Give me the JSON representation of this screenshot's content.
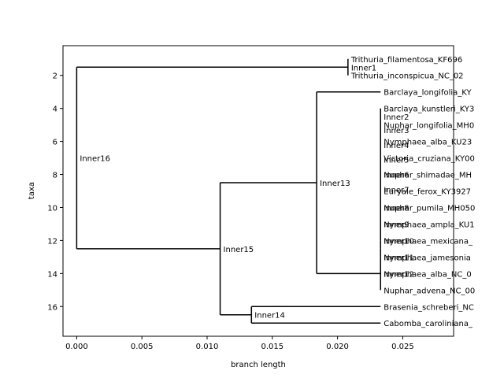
{
  "chart_data": {
    "type": "dendrogram",
    "title": "",
    "xlabel": "branch length",
    "ylabel": "taxa",
    "xlim": [
      -0.00105,
      0.0289
    ],
    "ylim": [
      17.8,
      0.2
    ],
    "xticks": [
      0.0,
      0.005,
      0.01,
      0.015,
      0.02,
      0.025
    ],
    "xtick_labels": [
      "0.000",
      "0.005",
      "0.010",
      "0.015",
      "0.020",
      "0.025"
    ],
    "yticks": [
      2,
      4,
      6,
      8,
      10,
      12,
      14,
      16
    ],
    "ytick_labels": [
      "2",
      "4",
      "6",
      "8",
      "10",
      "12",
      "14",
      "16"
    ],
    "grid": false,
    "nodes": [
      {
        "name": "Inner16",
        "x": 0.0,
        "y": 7.0,
        "parent": null
      },
      {
        "name": "Inner1",
        "x": 0.0208,
        "y": 1.5,
        "parent": "Inner16"
      },
      {
        "name": "Inner15",
        "x": 0.011,
        "y": 12.5,
        "parent": "Inner16"
      },
      {
        "name": "Inner13",
        "x": 0.0184,
        "y": 8.5,
        "parent": "Inner15"
      },
      {
        "name": "Inner14",
        "x": 0.0134,
        "y": 16.5,
        "parent": "Inner15"
      },
      {
        "name": "Inner12",
        "x": 0.0233,
        "y": 14.0,
        "parent": "Inner13"
      },
      {
        "name": "Inner11",
        "x": 0.0233,
        "y": 13.5,
        "parent": "Inner12"
      },
      {
        "name": "Inner10",
        "x": 0.0233,
        "y": 13.0,
        "parent": "Inner11"
      },
      {
        "name": "Inner9",
        "x": 0.0233,
        "y": 12.5,
        "parent": "Inner10"
      },
      {
        "name": "Inner8",
        "x": 0.0233,
        "y": 12.0,
        "parent": "Inner9"
      },
      {
        "name": "Inner7",
        "x": 0.0233,
        "y": 11.5,
        "parent": "Inner8"
      },
      {
        "name": "Inner6",
        "x": 0.0233,
        "y": 11.0,
        "parent": "Inner7"
      },
      {
        "name": "Inner5",
        "x": 0.0233,
        "y": 10.5,
        "parent": "Inner6"
      },
      {
        "name": "Inner4",
        "x": 0.0233,
        "y": 10.0,
        "parent": "Inner5"
      },
      {
        "name": "Inner3",
        "x": 0.0233,
        "y": 9.5,
        "parent": "Inner4"
      },
      {
        "name": "Inner2",
        "x": 0.0233,
        "y": 9.0,
        "parent": "Inner3"
      },
      {
        "name": "Trithuria_filamentosa_KF696",
        "x": 0.0208,
        "y": 1.0,
        "parent": "Inner1"
      },
      {
        "name": "Trithuria_inconspicua_NC_02",
        "x": 0.0208,
        "y": 2.0,
        "parent": "Inner1"
      },
      {
        "name": "Barclaya_longifolia_KY",
        "x": 0.0233,
        "y": 3.0,
        "parent": "Inner13"
      },
      {
        "name": "Barclaya_kunstleri_KY3",
        "x": 0.0233,
        "y": 4.0,
        "parent": "Inner2"
      },
      {
        "name": "Nuphar_longifolia_MH0",
        "x": 0.0233,
        "y": 5.0,
        "parent": "Inner2"
      },
      {
        "name": "Nymphaea_alba_KU23",
        "x": 0.0233,
        "y": 6.0,
        "parent": "Inner3"
      },
      {
        "name": "Victoria_cruziana_KY00",
        "x": 0.0233,
        "y": 7.0,
        "parent": "Inner4"
      },
      {
        "name": "Nuphar_shimadae_MH",
        "x": 0.0233,
        "y": 8.0,
        "parent": "Inner5"
      },
      {
        "name": "Euryale_ferox_KY3927",
        "x": 0.0233,
        "y": 9.0,
        "parent": "Inner6"
      },
      {
        "name": "Nuphar_pumila_MH050",
        "x": 0.0233,
        "y": 10.0,
        "parent": "Inner7"
      },
      {
        "name": "Nymphaea_ampla_KU1",
        "x": 0.0233,
        "y": 11.0,
        "parent": "Inner8"
      },
      {
        "name": "Nymphaea_mexicana_",
        "x": 0.0233,
        "y": 12.0,
        "parent": "Inner9"
      },
      {
        "name": "Nymphaea_jamesonia",
        "x": 0.0233,
        "y": 13.0,
        "parent": "Inner10"
      },
      {
        "name": "Nymphaea_alba_NC_0",
        "x": 0.0233,
        "y": 14.0,
        "parent": "Inner11"
      },
      {
        "name": "Nuphar_advena_NC_00",
        "x": 0.0233,
        "y": 15.0,
        "parent": "Inner12"
      },
      {
        "name": "Brasenia_schreberi_NC",
        "x": 0.0233,
        "y": 16.0,
        "parent": "Inner14"
      },
      {
        "name": "Cabomba_caroliniana_",
        "x": 0.0233,
        "y": 17.0,
        "parent": "Inner14"
      }
    ],
    "inner_labels": [
      {
        "name": "Inner1",
        "x": 0.0208,
        "y": 1.5
      },
      {
        "name": "Inner16",
        "x": 0.0,
        "y": 7.0
      },
      {
        "name": "Inner13",
        "x": 0.0184,
        "y": 8.5
      },
      {
        "name": "Inner15",
        "x": 0.011,
        "y": 12.5
      },
      {
        "name": "Inner14",
        "x": 0.0134,
        "y": 16.5
      },
      {
        "name": "Inner2",
        "x": 0.0233,
        "y": 4.5
      },
      {
        "name": "Inner3",
        "x": 0.0233,
        "y": 5.3
      },
      {
        "name": "Inner4",
        "x": 0.0233,
        "y": 6.2
      },
      {
        "name": "Inner5",
        "x": 0.0233,
        "y": 7.1
      },
      {
        "name": "Inner6",
        "x": 0.0233,
        "y": 8.0
      },
      {
        "name": "Inner7",
        "x": 0.0233,
        "y": 8.9
      },
      {
        "name": "Inner8",
        "x": 0.0233,
        "y": 10.0
      },
      {
        "name": "Inner9",
        "x": 0.0233,
        "y": 11.0
      },
      {
        "name": "Inner10",
        "x": 0.0233,
        "y": 12.0
      },
      {
        "name": "Inner11",
        "x": 0.0233,
        "y": 13.0
      },
      {
        "name": "Inner12",
        "x": 0.0233,
        "y": 14.0
      }
    ],
    "colors": {
      "line": "#000000",
      "background": "#ffffff"
    }
  }
}
